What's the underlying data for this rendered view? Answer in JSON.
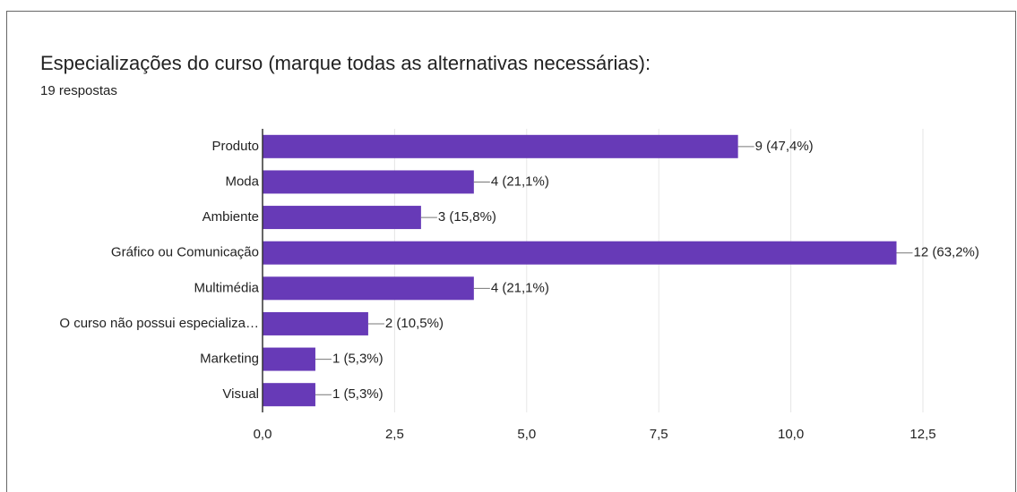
{
  "chart_data": {
    "type": "bar",
    "orientation": "horizontal",
    "title": "Especializações do curso (marque todas as alternativas necessárias):",
    "subtitle": "19 respostas",
    "categories": [
      "Produto",
      "Moda",
      "Ambiente",
      "Gráfico ou Comunicação",
      "Multimédia",
      "O curso não possui especializa…",
      "Marketing",
      "Visual"
    ],
    "values": [
      9,
      4,
      3,
      12,
      4,
      2,
      1,
      1
    ],
    "value_labels": [
      "9 (47,4%)",
      "4 (21,1%)",
      "3 (15,8%)",
      "12 (63,2%)",
      "4 (21,1%)",
      "2 (10,5%)",
      "1 (5,3%)",
      "1 (5,3%)"
    ],
    "color": "#673ab7",
    "xlim": [
      0,
      12.5
    ],
    "xticks": [
      {
        "value": 0,
        "label": "0,0"
      },
      {
        "value": 2.5,
        "label": "2,5"
      },
      {
        "value": 5,
        "label": "5,0"
      },
      {
        "value": 7.5,
        "label": "7,5"
      },
      {
        "value": 10,
        "label": "10,0"
      },
      {
        "value": 12.5,
        "label": "12,5"
      }
    ],
    "grid": true
  }
}
